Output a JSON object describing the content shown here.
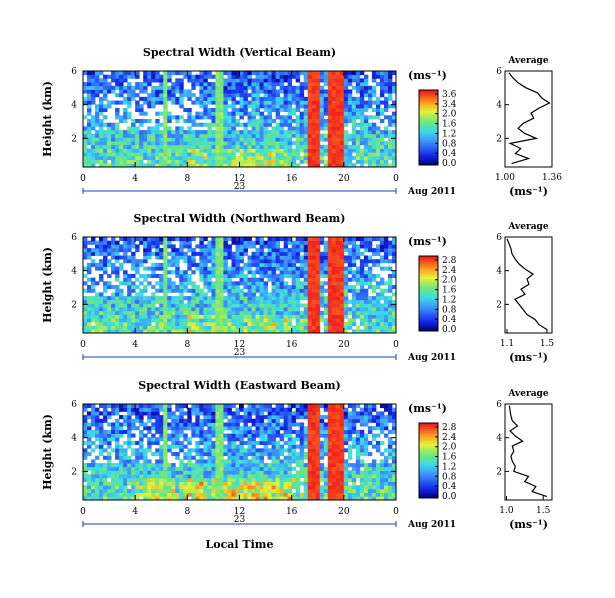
{
  "chart_data": {
    "type": "heatmap",
    "date_label": "Aug 2011",
    "day_label": "23",
    "x_title": "Local Time",
    "x_ticks": [
      "0",
      "4",
      "8",
      "12",
      "16",
      "20",
      "0"
    ],
    "x_range_hours": [
      0,
      24
    ],
    "y_title": "Height (km)",
    "y_ticks": [
      "2",
      "4",
      "6"
    ],
    "y_range_km": [
      0.3,
      6.0
    ],
    "colorbar_unit": "(ms⁻¹)",
    "profile_title": "Average",
    "profile_unit": "(ms⁻¹)",
    "panels": [
      {
        "title": "Spectral Width (Vertical Beam)",
        "colorbar_ticks": [
          "3.6",
          "3.4",
          "2.0",
          "1.6",
          "1.2",
          "0.8",
          "0.4",
          "0.0"
        ],
        "profile_xticks": [
          "1.00",
          "1.36"
        ],
        "profile_xlim": [
          1.0,
          1.36
        ],
        "profile_yticks": [
          "2",
          "4",
          "6"
        ],
        "profile": {
          "height_km": [
            0.5,
            0.8,
            1.1,
            1.4,
            1.7,
            2.0,
            2.3,
            2.6,
            2.9,
            3.2,
            3.5,
            3.8,
            4.1,
            4.4,
            4.7,
            5.0,
            5.3,
            5.6,
            5.9
          ],
          "width": [
            1.05,
            1.18,
            1.08,
            1.12,
            1.04,
            1.24,
            1.15,
            1.1,
            1.14,
            1.22,
            1.2,
            1.26,
            1.34,
            1.28,
            1.25,
            1.16,
            1.1,
            1.06,
            1.03
          ]
        }
      },
      {
        "title": "Spectral Width (Northward Beam)",
        "colorbar_ticks": [
          "2.8",
          "2.4",
          "2.0",
          "1.6",
          "1.2",
          "0.8",
          "0.4",
          "0.0"
        ],
        "profile_xticks": [
          "1.1",
          "1.5"
        ],
        "profile_xlim": [
          1.08,
          1.55
        ],
        "profile_yticks": [
          "2",
          "4",
          "6"
        ],
        "profile": {
          "height_km": [
            0.5,
            0.8,
            1.1,
            1.4,
            1.7,
            2.0,
            2.3,
            2.6,
            2.9,
            3.2,
            3.5,
            3.8,
            4.1,
            4.4,
            4.7,
            5.0,
            5.3,
            5.6,
            5.9
          ],
          "width": [
            1.5,
            1.42,
            1.38,
            1.3,
            1.26,
            1.22,
            1.18,
            1.28,
            1.24,
            1.32,
            1.3,
            1.36,
            1.28,
            1.22,
            1.18,
            1.15,
            1.14,
            1.12,
            1.1
          ]
        }
      },
      {
        "title": "Spectral Width (Eastward Beam)",
        "colorbar_ticks": [
          "2.8",
          "2.4",
          "2.0",
          "1.6",
          "1.2",
          "0.8",
          "0.4",
          "0.0"
        ],
        "profile_xticks": [
          "1.0",
          "1.5"
        ],
        "profile_xlim": [
          0.98,
          1.62
        ],
        "profile_yticks": [
          "2",
          "4",
          "6"
        ],
        "profile": {
          "height_km": [
            0.5,
            0.8,
            1.1,
            1.4,
            1.7,
            2.0,
            2.3,
            2.6,
            2.9,
            3.2,
            3.5,
            3.8,
            4.1,
            4.4,
            4.7,
            5.0,
            5.3,
            5.6,
            5.9
          ],
          "width": [
            1.55,
            1.35,
            1.4,
            1.25,
            1.3,
            1.1,
            1.12,
            1.08,
            1.06,
            1.1,
            1.08,
            1.22,
            1.12,
            1.05,
            1.15,
            1.08,
            1.06,
            1.05,
            1.04
          ]
        }
      }
    ]
  }
}
